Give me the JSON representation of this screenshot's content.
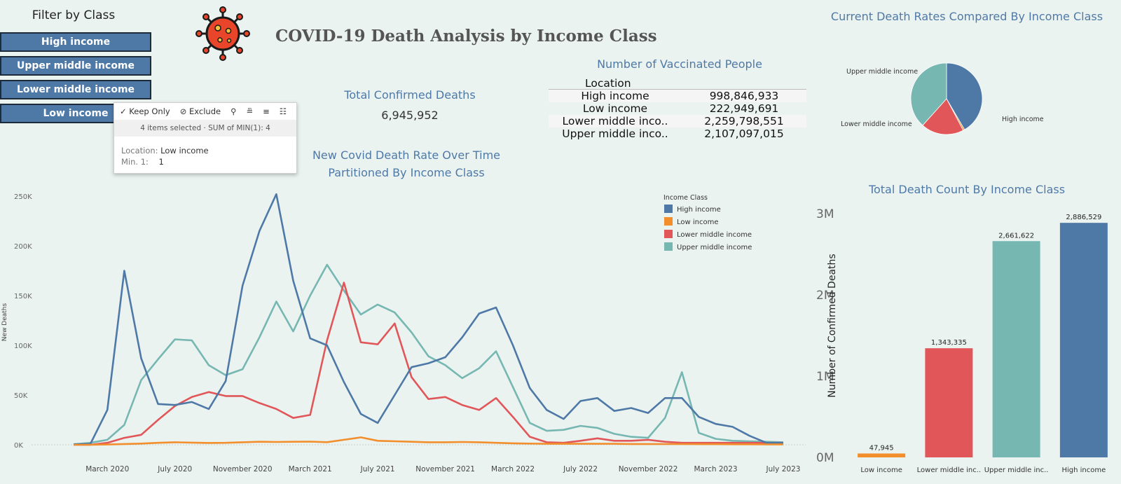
{
  "filter": {
    "title": "Filter by Class",
    "buttons": [
      "High income",
      "Upper middle income",
      "Lower middle income",
      "Low income"
    ]
  },
  "tooltip": {
    "actions": [
      "Keep Only",
      "Exclude"
    ],
    "selection": "4 items selected  ·  SUM of MIN(1): 4",
    "location_key": "Location:",
    "location_val": "Low income",
    "min_key": "Min. 1:",
    "min_val": "1"
  },
  "header": {
    "title": "COVID-19 Death Analysis by Income Class"
  },
  "kpi": {
    "title": "Total Confirmed Deaths",
    "value": "6,945,952"
  },
  "vaccinated": {
    "title": "Number of Vaccinated People",
    "column_header": "Location",
    "rows": [
      {
        "location": "High income",
        "value": "998,846,933"
      },
      {
        "location": "Low income",
        "value": "222,949,691"
      },
      {
        "location": "Lower middle inco..",
        "value": "2,259,798,551"
      },
      {
        "location": "Upper middle inco..",
        "value": "2,107,097,015"
      }
    ]
  },
  "colors": {
    "High income": "#4e79a7",
    "Low income": "#f28e2b",
    "Lower middle income": "#e15759",
    "Upper middle income": "#76b7b2"
  },
  "chart_data": [
    {
      "type": "line",
      "title": "New Covid Death Rate Over Time Partitioned By Income Class",
      "ylabel": "New Deaths",
      "ylim": [
        0,
        250000
      ],
      "yticks": [
        0,
        50000,
        100000,
        150000,
        200000,
        250000
      ],
      "ytick_labels": [
        "0K",
        "50K",
        "100K",
        "150K",
        "200K",
        "250K"
      ],
      "x_tick_labels": [
        "March 2020",
        "July 2020",
        "November 2020",
        "March 2021",
        "July 2021",
        "November 2021",
        "March 2022",
        "July 2022",
        "November 2022",
        "March 2023",
        "July 2023"
      ],
      "x_tick_index": [
        2,
        6,
        10,
        14,
        18,
        22,
        26,
        30,
        34,
        38,
        42
      ],
      "x": [
        "2020-01",
        "2020-02",
        "2020-03",
        "2020-04",
        "2020-05",
        "2020-06",
        "2020-07",
        "2020-08",
        "2020-09",
        "2020-10",
        "2020-11",
        "2020-12",
        "2021-01",
        "2021-02",
        "2021-03",
        "2021-04",
        "2021-05",
        "2021-06",
        "2021-07",
        "2021-08",
        "2021-09",
        "2021-10",
        "2021-11",
        "2021-12",
        "2022-01",
        "2022-02",
        "2022-03",
        "2022-04",
        "2022-05",
        "2022-06",
        "2022-07",
        "2022-08",
        "2022-09",
        "2022-10",
        "2022-11",
        "2022-12",
        "2023-01",
        "2023-02",
        "2023-03",
        "2023-04",
        "2023-05",
        "2023-06",
        "2023-07"
      ],
      "legend_title": "Income Class",
      "legend_position": "top-right",
      "series": [
        {
          "name": "High income",
          "values": [
            500,
            1000,
            35000,
            175000,
            87000,
            41000,
            40000,
            43000,
            36000,
            64000,
            160000,
            215000,
            252000,
            165000,
            107000,
            100000,
            63000,
            31000,
            22000,
            50000,
            78000,
            82000,
            88000,
            108000,
            132000,
            138000,
            100000,
            57000,
            35000,
            26000,
            44000,
            47000,
            34000,
            37000,
            32000,
            47000,
            47000,
            28000,
            21000,
            18000,
            9000,
            2000,
            2000
          ]
        },
        {
          "name": "Low income",
          "values": [
            0,
            0,
            300,
            800,
            1200,
            2000,
            2500,
            2200,
            1800,
            2000,
            2500,
            3000,
            2800,
            3000,
            3200,
            2600,
            5000,
            7500,
            4000,
            3500,
            3000,
            2500,
            2500,
            2800,
            2500,
            2000,
            1500,
            1200,
            1000,
            1000,
            1000,
            1000,
            1000,
            800,
            800,
            700,
            700,
            600,
            600,
            500,
            500,
            400,
            400
          ]
        },
        {
          "name": "Lower middle income",
          "values": [
            0,
            0,
            2000,
            7000,
            10000,
            25000,
            39000,
            48000,
            53000,
            49000,
            49000,
            42000,
            36000,
            27000,
            30000,
            105000,
            163000,
            103000,
            101000,
            122000,
            68000,
            46000,
            48000,
            40000,
            35000,
            47000,
            28000,
            8000,
            2500,
            2000,
            4000,
            6500,
            4000,
            4000,
            5000,
            3000,
            2000,
            2000,
            2000,
            2000,
            2000,
            2000,
            2000
          ]
        },
        {
          "name": "Upper middle income",
          "values": [
            500,
            2000,
            5000,
            20000,
            65000,
            86000,
            106000,
            105000,
            80000,
            70000,
            76000,
            108000,
            144000,
            114000,
            150000,
            181000,
            155000,
            131000,
            141000,
            133000,
            113000,
            89000,
            80000,
            67000,
            77000,
            94000,
            58000,
            22000,
            14000,
            15000,
            19000,
            17000,
            11000,
            8000,
            7000,
            27000,
            73000,
            12000,
            6000,
            4000,
            3500,
            3000,
            2500
          ]
        }
      ]
    },
    {
      "type": "pie",
      "title": "Current Death Rates Compared By Income Class",
      "slices": [
        {
          "name": "High income",
          "value": 2886529
        },
        {
          "name": "Low income",
          "value": 47945
        },
        {
          "name": "Lower middle income",
          "value": 1343335
        },
        {
          "name": "Upper middle income",
          "value": 2661622
        }
      ],
      "labels": [
        "Upper middle income",
        "Lower middle income",
        "High income"
      ]
    },
    {
      "type": "bar",
      "title": "Total Death Count By Income Class",
      "ylabel": "Number of Confirmed Deaths",
      "categories": [
        "Low income",
        "Lower middle inc..",
        "Upper middle inc..",
        "High income"
      ],
      "series_names": [
        "Low income",
        "Lower middle income",
        "Upper middle income",
        "High income"
      ],
      "values": [
        47945,
        1343335,
        2661622,
        2886529
      ],
      "value_labels": [
        "47,945",
        "1,343,335",
        "2,661,622",
        "2,886,529"
      ],
      "ylim": [
        0,
        3000000
      ],
      "yticks": [
        0,
        1000000,
        2000000,
        3000000
      ],
      "ytick_labels": [
        "0M",
        "1M",
        "2M",
        "3M"
      ]
    }
  ]
}
